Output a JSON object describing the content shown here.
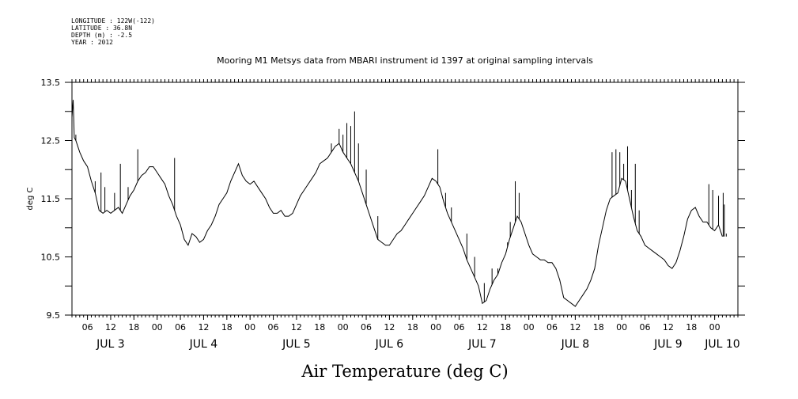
{
  "meta": {
    "longitude": "LONGITUDE : 122W(-122)",
    "latitude": "LATITUDE : 36.8N",
    "depth": "DEPTH (m) : -2.5",
    "year": "YEAR : 2012"
  },
  "chart_data": {
    "type": "line",
    "title": "Mooring M1 Metsys data from MBARI instrument id 1397 at original sampling intervals",
    "xlabel": "Air Temperature (deg C)",
    "ylabel": "deg C",
    "ylim": [
      9.5,
      13.5
    ],
    "y_ticks": [
      "9.5",
      "10.5",
      "11.5",
      "12.5",
      "13.5"
    ],
    "xlim_hours": [
      0,
      172
    ],
    "hour_ticks": [
      {
        "h": 4,
        "label": "06"
      },
      {
        "h": 10,
        "label": "12"
      },
      {
        "h": 16,
        "label": "18"
      },
      {
        "h": 22,
        "label": "00"
      },
      {
        "h": 28,
        "label": "06"
      },
      {
        "h": 34,
        "label": "12"
      },
      {
        "h": 40,
        "label": "18"
      },
      {
        "h": 46,
        "label": "00"
      },
      {
        "h": 52,
        "label": "06"
      },
      {
        "h": 58,
        "label": "12"
      },
      {
        "h": 64,
        "label": "18"
      },
      {
        "h": 70,
        "label": "00"
      },
      {
        "h": 76,
        "label": "06"
      },
      {
        "h": 82,
        "label": "12"
      },
      {
        "h": 88,
        "label": "18"
      },
      {
        "h": 94,
        "label": "00"
      },
      {
        "h": 100,
        "label": "06"
      },
      {
        "h": 106,
        "label": "12"
      },
      {
        "h": 112,
        "label": "18"
      },
      {
        "h": 118,
        "label": "00"
      },
      {
        "h": 124,
        "label": "06"
      },
      {
        "h": 130,
        "label": "12"
      },
      {
        "h": 136,
        "label": "18"
      },
      {
        "h": 142,
        "label": "00"
      },
      {
        "h": 148,
        "label": "06"
      },
      {
        "h": 154,
        "label": "12"
      },
      {
        "h": 160,
        "label": "18"
      },
      {
        "h": 166,
        "label": "00"
      }
    ],
    "day_labels": [
      {
        "h": 10,
        "label": "JUL  3"
      },
      {
        "h": 34,
        "label": "JUL  4"
      },
      {
        "h": 58,
        "label": "JUL  5"
      },
      {
        "h": 82,
        "label": "JUL  6"
      },
      {
        "h": 106,
        "label": "JUL  7"
      },
      {
        "h": 130,
        "label": "JUL  8"
      },
      {
        "h": 154,
        "label": "JUL  9"
      },
      {
        "h": 168,
        "label": "JUL 10"
      }
    ],
    "series": [
      {
        "color": "#000000",
        "points": [
          [
            0,
            12.9
          ],
          [
            0.3,
            13.2
          ],
          [
            0.6,
            12.55
          ],
          [
            1,
            12.5
          ],
          [
            2,
            12.3
          ],
          [
            3,
            12.15
          ],
          [
            4,
            12.05
          ],
          [
            5,
            11.8
          ],
          [
            6,
            11.6
          ],
          [
            7,
            11.3
          ],
          [
            8,
            11.25
          ],
          [
            9,
            11.3
          ],
          [
            10,
            11.25
          ],
          [
            11,
            11.3
          ],
          [
            12,
            11.35
          ],
          [
            13,
            11.25
          ],
          [
            14,
            11.4
          ],
          [
            15,
            11.55
          ],
          [
            16,
            11.65
          ],
          [
            17,
            11.8
          ],
          [
            18,
            11.9
          ],
          [
            19,
            11.95
          ],
          [
            20,
            12.05
          ],
          [
            21,
            12.05
          ],
          [
            22,
            11.95
          ],
          [
            23,
            11.85
          ],
          [
            24,
            11.75
          ],
          [
            25,
            11.55
          ],
          [
            26,
            11.4
          ],
          [
            27,
            11.2
          ],
          [
            28,
            11.05
          ],
          [
            29,
            10.8
          ],
          [
            30,
            10.7
          ],
          [
            31,
            10.9
          ],
          [
            32,
            10.85
          ],
          [
            33,
            10.75
          ],
          [
            34,
            10.8
          ],
          [
            35,
            10.95
          ],
          [
            36,
            11.05
          ],
          [
            37,
            11.2
          ],
          [
            38,
            11.4
          ],
          [
            39,
            11.5
          ],
          [
            40,
            11.6
          ],
          [
            41,
            11.8
          ],
          [
            42,
            11.95
          ],
          [
            43,
            12.1
          ],
          [
            44,
            11.9
          ],
          [
            45,
            11.8
          ],
          [
            46,
            11.75
          ],
          [
            47,
            11.8
          ],
          [
            48,
            11.7
          ],
          [
            49,
            11.6
          ],
          [
            50,
            11.5
          ],
          [
            51,
            11.35
          ],
          [
            52,
            11.25
          ],
          [
            53,
            11.25
          ],
          [
            54,
            11.3
          ],
          [
            55,
            11.2
          ],
          [
            56,
            11.2
          ],
          [
            57,
            11.25
          ],
          [
            58,
            11.4
          ],
          [
            59,
            11.55
          ],
          [
            60,
            11.65
          ],
          [
            61,
            11.75
          ],
          [
            62,
            11.85
          ],
          [
            63,
            11.95
          ],
          [
            64,
            12.1
          ],
          [
            65,
            12.15
          ],
          [
            66,
            12.2
          ],
          [
            67,
            12.3
          ],
          [
            68,
            12.4
          ],
          [
            69,
            12.45
          ],
          [
            70,
            12.3
          ],
          [
            71,
            12.2
          ],
          [
            72,
            12.1
          ],
          [
            73,
            11.95
          ],
          [
            74,
            11.8
          ],
          [
            75,
            11.6
          ],
          [
            76,
            11.4
          ],
          [
            77,
            11.2
          ],
          [
            78,
            11.0
          ],
          [
            79,
            10.8
          ],
          [
            80,
            10.75
          ],
          [
            81,
            10.7
          ],
          [
            82,
            10.7
          ],
          [
            83,
            10.8
          ],
          [
            84,
            10.9
          ],
          [
            85,
            10.95
          ],
          [
            86,
            11.05
          ],
          [
            87,
            11.15
          ],
          [
            88,
            11.25
          ],
          [
            89,
            11.35
          ],
          [
            90,
            11.45
          ],
          [
            91,
            11.55
          ],
          [
            92,
            11.7
          ],
          [
            93,
            11.85
          ],
          [
            94,
            11.8
          ],
          [
            95,
            11.7
          ],
          [
            96,
            11.45
          ],
          [
            97,
            11.25
          ],
          [
            98,
            11.1
          ],
          [
            99,
            10.95
          ],
          [
            100,
            10.8
          ],
          [
            101,
            10.65
          ],
          [
            102,
            10.45
          ],
          [
            103,
            10.3
          ],
          [
            104,
            10.15
          ],
          [
            105,
            10.0
          ],
          [
            106,
            9.7
          ],
          [
            107,
            9.75
          ],
          [
            108,
            9.95
          ],
          [
            109,
            10.1
          ],
          [
            110,
            10.2
          ],
          [
            111,
            10.4
          ],
          [
            112,
            10.55
          ],
          [
            113,
            10.8
          ],
          [
            114,
            11.0
          ],
          [
            115,
            11.2
          ],
          [
            116,
            11.1
          ],
          [
            117,
            10.9
          ],
          [
            118,
            10.7
          ],
          [
            119,
            10.55
          ],
          [
            120,
            10.5
          ],
          [
            121,
            10.45
          ],
          [
            122,
            10.45
          ],
          [
            123,
            10.4
          ],
          [
            124,
            10.4
          ],
          [
            125,
            10.3
          ],
          [
            126,
            10.1
          ],
          [
            127,
            9.8
          ],
          [
            128,
            9.75
          ],
          [
            129,
            9.7
          ],
          [
            130,
            9.65
          ],
          [
            131,
            9.75
          ],
          [
            132,
            9.85
          ],
          [
            133,
            9.95
          ],
          [
            134,
            10.1
          ],
          [
            135,
            10.3
          ],
          [
            136,
            10.7
          ],
          [
            137,
            11.0
          ],
          [
            138,
            11.3
          ],
          [
            139,
            11.5
          ],
          [
            140,
            11.55
          ],
          [
            141,
            11.6
          ],
          [
            142,
            11.85
          ],
          [
            143,
            11.8
          ],
          [
            144,
            11.5
          ],
          [
            145,
            11.2
          ],
          [
            146,
            10.95
          ],
          [
            147,
            10.85
          ],
          [
            148,
            10.7
          ],
          [
            149,
            10.65
          ],
          [
            150,
            10.6
          ],
          [
            151,
            10.55
          ],
          [
            152,
            10.5
          ],
          [
            153,
            10.45
          ],
          [
            154,
            10.35
          ],
          [
            155,
            10.3
          ],
          [
            156,
            10.4
          ],
          [
            157,
            10.6
          ],
          [
            158,
            10.85
          ],
          [
            159,
            11.15
          ],
          [
            160,
            11.3
          ],
          [
            161,
            11.35
          ],
          [
            162,
            11.2
          ],
          [
            163,
            11.1
          ],
          [
            164,
            11.1
          ],
          [
            165,
            11.0
          ],
          [
            166,
            10.95
          ],
          [
            167,
            11.05
          ],
          [
            168,
            10.85
          ]
        ],
        "spikes": [
          [
            1,
            12.6
          ],
          [
            6,
            11.8
          ],
          [
            7.5,
            11.95
          ],
          [
            8.5,
            11.7
          ],
          [
            11,
            11.6
          ],
          [
            12.5,
            12.1
          ],
          [
            14.5,
            11.7
          ],
          [
            17,
            12.35
          ],
          [
            26.5,
            12.2
          ],
          [
            67,
            12.45
          ],
          [
            69,
            12.7
          ],
          [
            70,
            12.6
          ],
          [
            71,
            12.8
          ],
          [
            72,
            12.75
          ],
          [
            73,
            13.0
          ],
          [
            74,
            12.45
          ],
          [
            76,
            12.0
          ],
          [
            79,
            11.2
          ],
          [
            94.5,
            12.35
          ],
          [
            96.5,
            11.6
          ],
          [
            98,
            11.35
          ],
          [
            102,
            10.9
          ],
          [
            104,
            10.5
          ],
          [
            106.5,
            10.05
          ],
          [
            108.5,
            10.3
          ],
          [
            110,
            10.3
          ],
          [
            112.5,
            10.75
          ],
          [
            113.2,
            11.1
          ],
          [
            114.5,
            11.8
          ],
          [
            115.5,
            11.6
          ],
          [
            139.5,
            12.3
          ],
          [
            140.5,
            12.35
          ],
          [
            141.5,
            12.3
          ],
          [
            142.5,
            12.1
          ],
          [
            143.5,
            12.4
          ],
          [
            144.5,
            11.65
          ],
          [
            145.5,
            12.1
          ],
          [
            146.5,
            11.3
          ],
          [
            164.5,
            11.75
          ],
          [
            165.5,
            11.65
          ],
          [
            167,
            11.55
          ],
          [
            168.2,
            11.6
          ],
          [
            168.5,
            11.4
          ],
          [
            169,
            10.9
          ]
        ]
      }
    ]
  }
}
